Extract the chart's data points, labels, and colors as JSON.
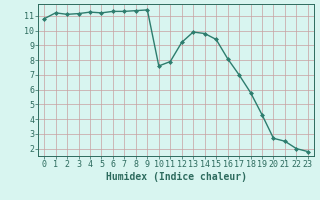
{
  "x": [
    0,
    1,
    2,
    3,
    4,
    5,
    6,
    7,
    8,
    9,
    10,
    11,
    12,
    13,
    14,
    15,
    16,
    17,
    18,
    19,
    20,
    21,
    22,
    23
  ],
  "y": [
    10.8,
    11.2,
    11.1,
    11.15,
    11.25,
    11.2,
    11.3,
    11.3,
    11.35,
    11.4,
    7.6,
    7.9,
    9.2,
    9.9,
    9.8,
    9.4,
    8.1,
    7.0,
    5.8,
    4.3,
    2.7,
    2.5,
    2.0,
    1.8
  ],
  "line_color": "#2d7d6e",
  "marker": "D",
  "marker_size": 2,
  "bg_color": "#d8f5f0",
  "grid_color": "#c8a0a0",
  "xlabel": "Humidex (Indice chaleur)",
  "xlim": [
    -0.5,
    23.5
  ],
  "ylim": [
    1.5,
    11.8
  ],
  "yticks": [
    2,
    3,
    4,
    5,
    6,
    7,
    8,
    9,
    10,
    11
  ],
  "xticks": [
    0,
    1,
    2,
    3,
    4,
    5,
    6,
    7,
    8,
    9,
    10,
    11,
    12,
    13,
    14,
    15,
    16,
    17,
    18,
    19,
    20,
    21,
    22,
    23
  ],
  "text_color": "#2d6b5e",
  "tick_fontsize": 6,
  "xlabel_fontsize": 7,
  "line_width": 1.0
}
